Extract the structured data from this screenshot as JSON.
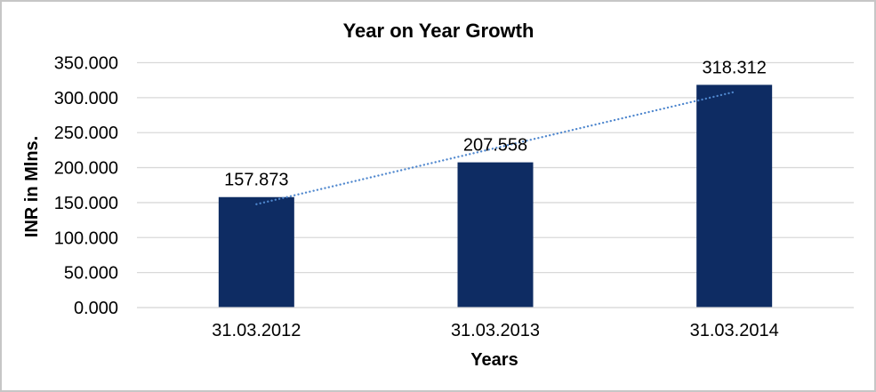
{
  "chart_data": {
    "type": "bar",
    "title": "Year on Year Growth",
    "xlabel": "Years",
    "ylabel": "INR in Mlns.",
    "categories": [
      "31.03.2012",
      "31.03.2013",
      "31.03.2014"
    ],
    "values": [
      157.873,
      207.558,
      318.312
    ],
    "data_labels": [
      "157.873",
      "207.558",
      "318.312"
    ],
    "ylim": [
      0,
      350
    ],
    "ytick_values": [
      0,
      50,
      100,
      150,
      200,
      250,
      300,
      350
    ],
    "ytick_labels": [
      "0.000",
      "50.000",
      "100.000",
      "150.000",
      "200.000",
      "250.000",
      "300.000",
      "350.000"
    ],
    "grid": "horizontal",
    "legend": "none",
    "trendline": {
      "type": "linear",
      "style": "dotted"
    }
  },
  "colors": {
    "bar": "#0E2C63",
    "trendline": "#4F87CE",
    "gridline": "#D9D9D9",
    "axis_line": "#D9D9D9",
    "text": "#000000",
    "background": "#FFFFFF",
    "frame_border": "#C6C6C6"
  }
}
